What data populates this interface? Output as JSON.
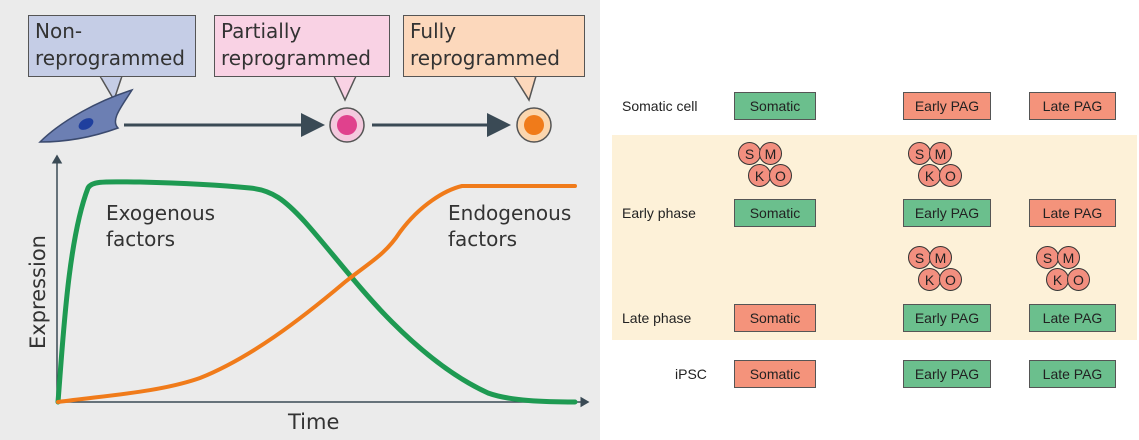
{
  "left_diagram": {
    "stages": [
      {
        "line1": "Non-",
        "line2": "reprogrammed"
      },
      {
        "line1": "Partially",
        "line2": "reprogrammed"
      },
      {
        "line1": "Fully",
        "line2": "reprogrammed"
      }
    ],
    "curves": [
      {
        "line1": "Exogenous",
        "line2": "factors",
        "color": "#1e9a52"
      },
      {
        "line1": "Endogenous",
        "line2": "factors",
        "color": "#f07b1a"
      }
    ],
    "axes": {
      "x_label": "Time",
      "y_label": "Expression"
    }
  },
  "right_diagram": {
    "rows": [
      {
        "label": "Somatic cell"
      },
      {
        "label": "Early phase"
      },
      {
        "label": "Late phase"
      },
      {
        "label": "iPSC"
      }
    ],
    "gene_labels": {
      "somatic": "Somatic",
      "early": "Early PAG",
      "late": "Late PAG"
    },
    "factors": {
      "s": "S",
      "m": "M",
      "k": "K",
      "o": "O"
    },
    "colors": {
      "active": "#6bbf8d",
      "inactive": "#f4937b",
      "factor": "#f28f7f",
      "band": "#fdf1d8"
    }
  }
}
